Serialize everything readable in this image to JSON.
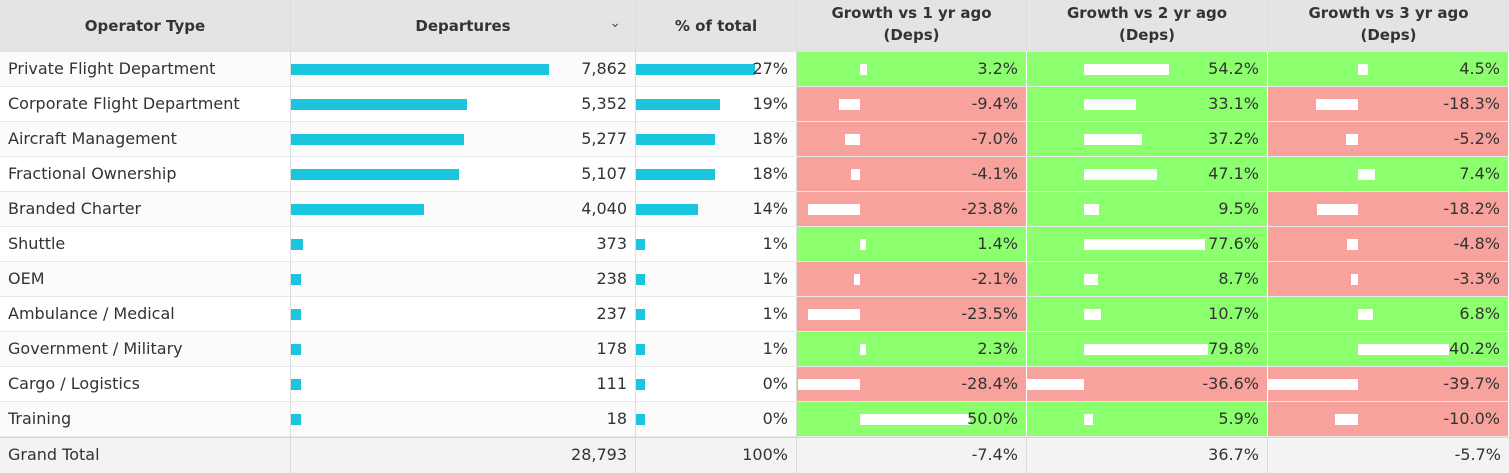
{
  "headers": {
    "operator_type": "Operator Type",
    "departures": "Departures",
    "pct_total": "% of total",
    "growth1": "Growth vs 1 yr ago",
    "growth2": "Growth vs 2 yr ago",
    "growth3": "Growth vs 3 yr ago",
    "growth_sub": "(Deps)"
  },
  "colors": {
    "bar": "#19c6dd",
    "positive": "#8cff6f",
    "negative": "#f7a29c"
  },
  "rows": [
    {
      "type": "Private Flight Department",
      "deps": "7,862",
      "deps_v": 7862,
      "pct": "27%",
      "pct_v": 27,
      "g1": "3.2%",
      "g1_v": 3.2,
      "g2": "54.2%",
      "g2_v": 54.2,
      "g3": "4.5%",
      "g3_v": 4.5
    },
    {
      "type": "Corporate Flight Department",
      "deps": "5,352",
      "deps_v": 5352,
      "pct": "19%",
      "pct_v": 19,
      "g1": "-9.4%",
      "g1_v": -9.4,
      "g2": "33.1%",
      "g2_v": 33.1,
      "g3": "-18.3%",
      "g3_v": -18.3
    },
    {
      "type": "Aircraft Management",
      "deps": "5,277",
      "deps_v": 5277,
      "pct": "18%",
      "pct_v": 18,
      "g1": "-7.0%",
      "g1_v": -7.0,
      "g2": "37.2%",
      "g2_v": 37.2,
      "g3": "-5.2%",
      "g3_v": -5.2
    },
    {
      "type": "Fractional Ownership",
      "deps": "5,107",
      "deps_v": 5107,
      "pct": "18%",
      "pct_v": 18,
      "g1": "-4.1%",
      "g1_v": -4.1,
      "g2": "47.1%",
      "g2_v": 47.1,
      "g3": "7.4%",
      "g3_v": 7.4
    },
    {
      "type": "Branded Charter",
      "deps": "4,040",
      "deps_v": 4040,
      "pct": "14%",
      "pct_v": 14,
      "g1": "-23.8%",
      "g1_v": -23.8,
      "g2": "9.5%",
      "g2_v": 9.5,
      "g3": "-18.2%",
      "g3_v": -18.2
    },
    {
      "type": "Shuttle",
      "deps": "373",
      "deps_v": 373,
      "pct": "1%",
      "pct_v": 1,
      "g1": "1.4%",
      "g1_v": 1.4,
      "g2": "77.6%",
      "g2_v": 77.6,
      "g3": "-4.8%",
      "g3_v": -4.8
    },
    {
      "type": "OEM",
      "deps": "238",
      "deps_v": 238,
      "pct": "1%",
      "pct_v": 1,
      "g1": "-2.1%",
      "g1_v": -2.1,
      "g2": "8.7%",
      "g2_v": 8.7,
      "g3": "-3.3%",
      "g3_v": -3.3
    },
    {
      "type": "Ambulance / Medical",
      "deps": "237",
      "deps_v": 237,
      "pct": "1%",
      "pct_v": 1,
      "g1": "-23.5%",
      "g1_v": -23.5,
      "g2": "10.7%",
      "g2_v": 10.7,
      "g3": "6.8%",
      "g3_v": 6.8
    },
    {
      "type": "Government / Military",
      "deps": "178",
      "deps_v": 178,
      "pct": "1%",
      "pct_v": 1,
      "g1": "2.3%",
      "g1_v": 2.3,
      "g2": "79.8%",
      "g2_v": 79.8,
      "g3": "40.2%",
      "g3_v": 40.2
    },
    {
      "type": "Cargo / Logistics",
      "deps": "111",
      "deps_v": 111,
      "pct": "0%",
      "pct_v": 0,
      "g1": "-28.4%",
      "g1_v": -28.4,
      "g2": "-36.6%",
      "g2_v": -36.6,
      "g3": "-39.7%",
      "g3_v": -39.7
    },
    {
      "type": "Training",
      "deps": "18",
      "deps_v": 18,
      "pct": "0%",
      "pct_v": 0,
      "g1": "50.0%",
      "g1_v": 50.0,
      "g2": "5.9%",
      "g2_v": 5.9,
      "g3": "-10.0%",
      "g3_v": -10.0
    }
  ],
  "total": {
    "label": "Grand Total",
    "deps": "28,793",
    "pct": "100%",
    "g1": "-7.4%",
    "g2": "36.7%",
    "g3": "-5.7%"
  }
}
